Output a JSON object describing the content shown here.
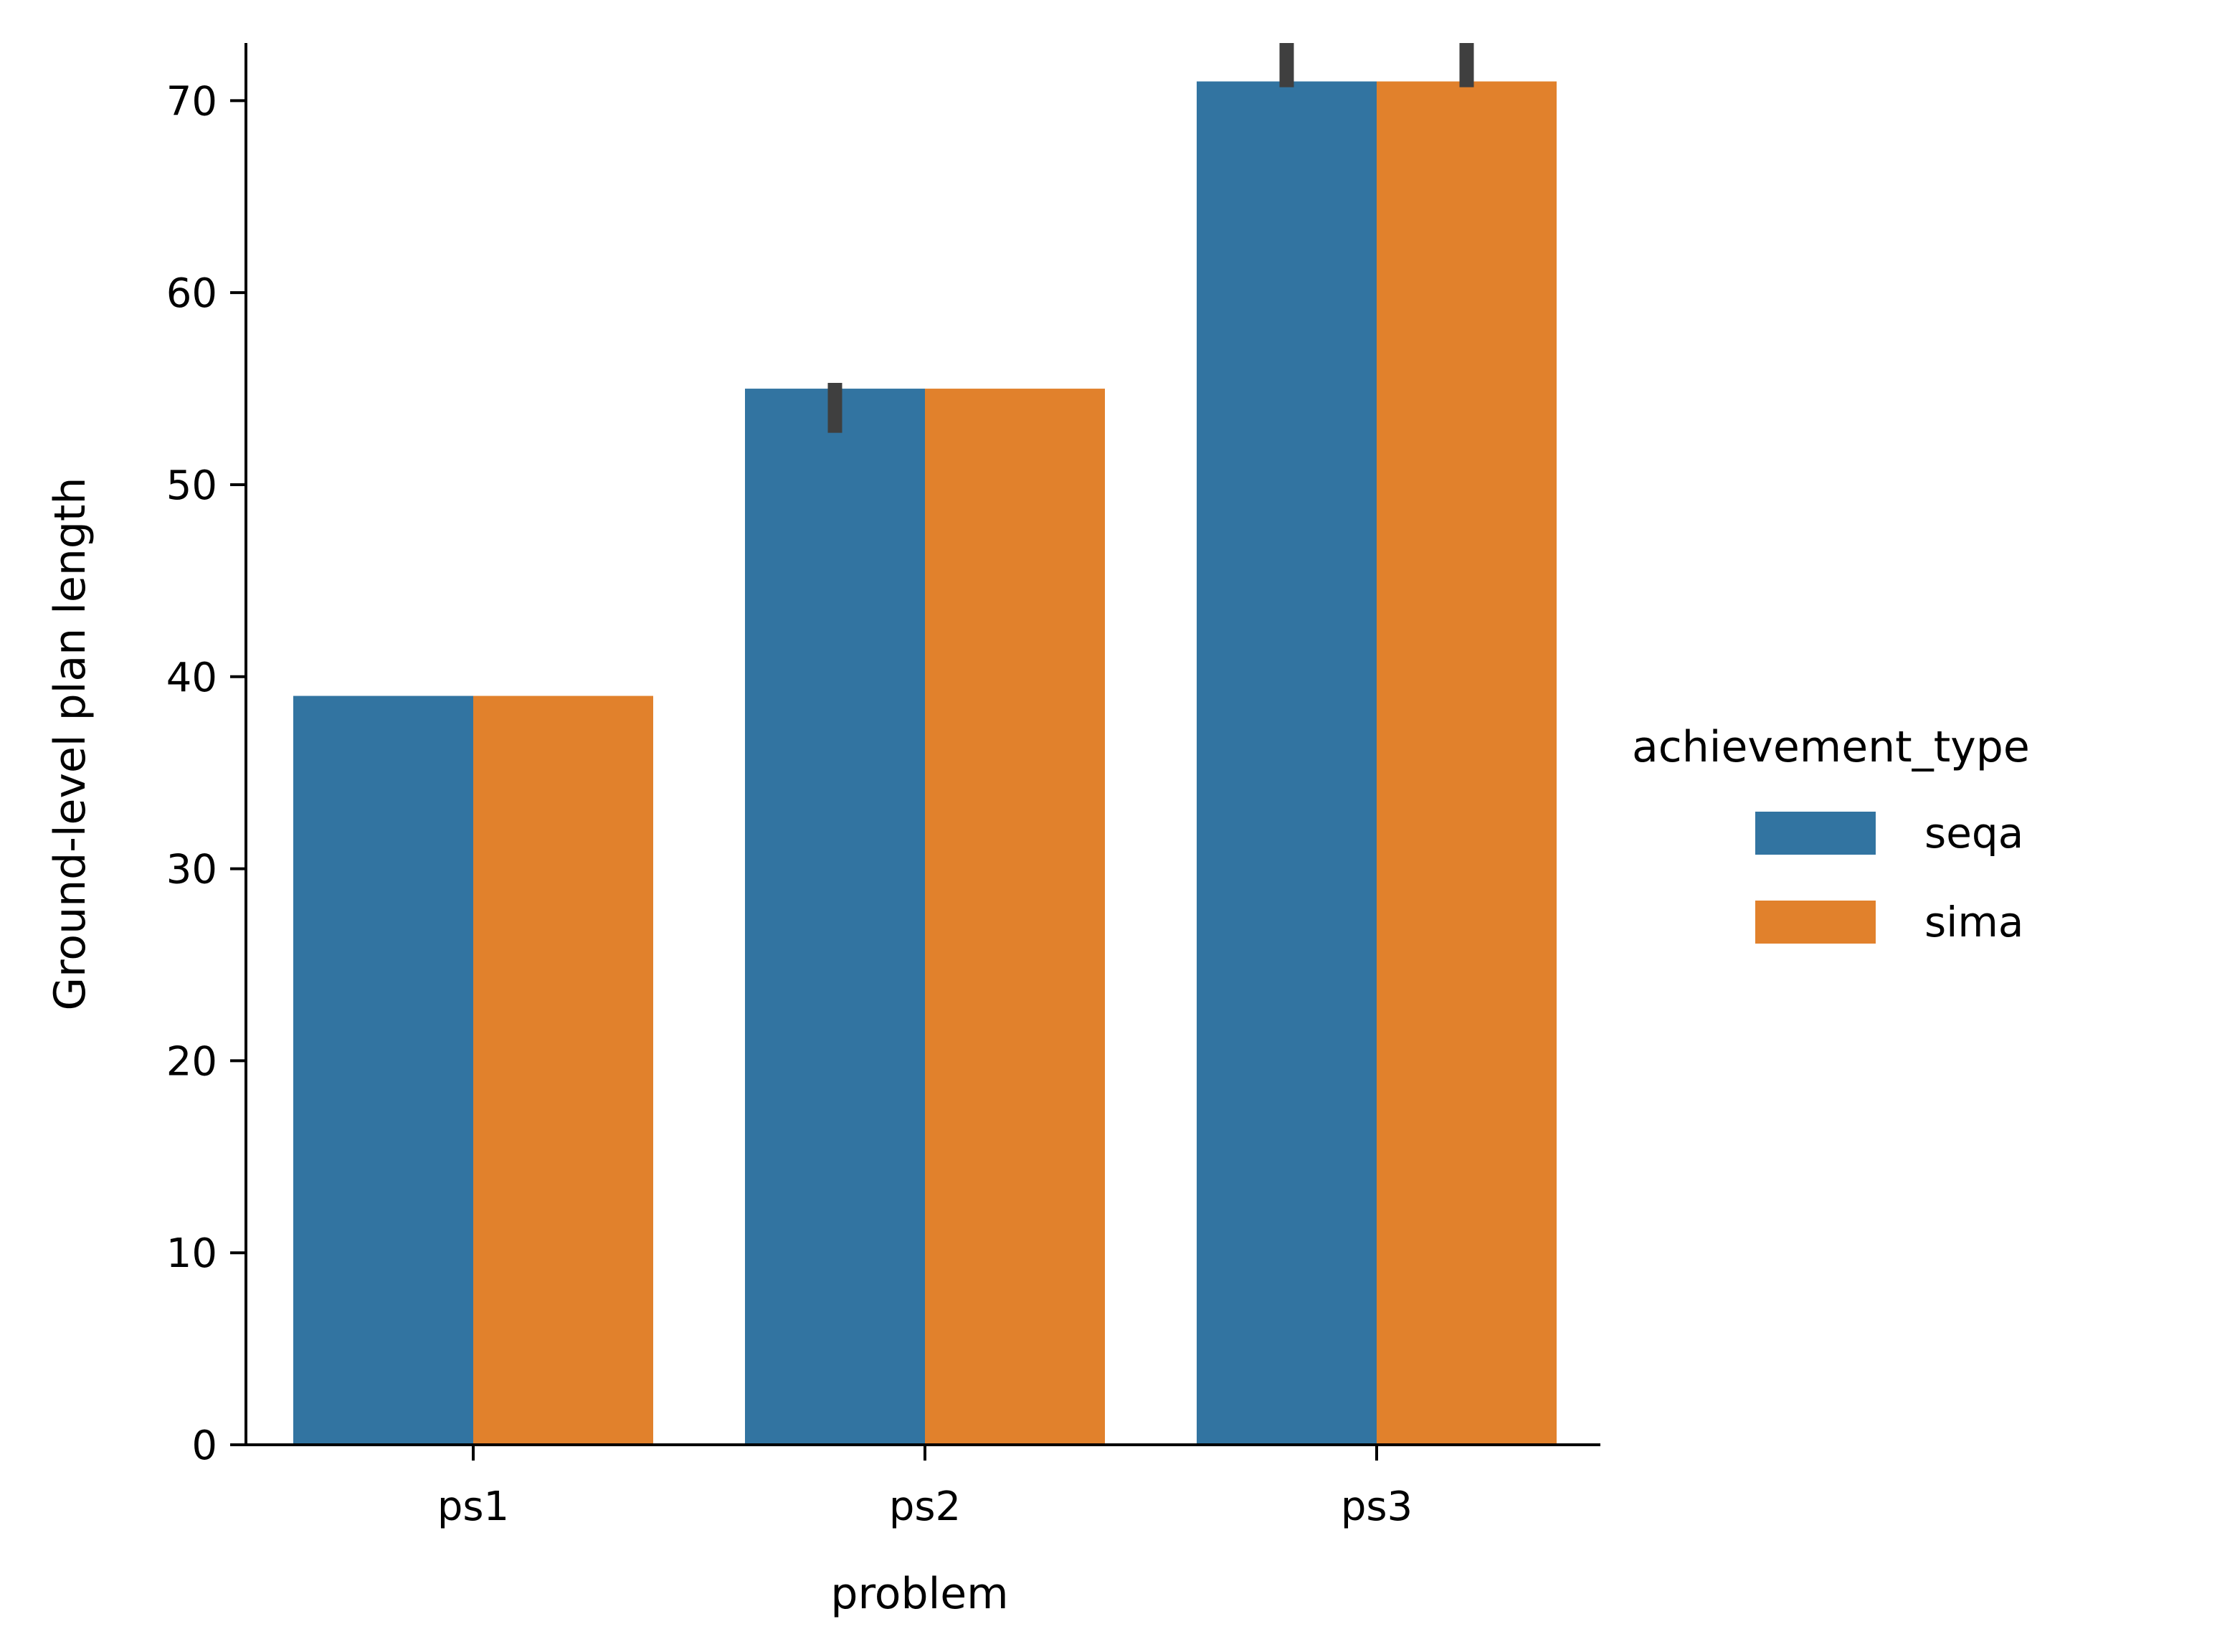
{
  "chart_data": {
    "type": "bar",
    "categories": [
      "ps1",
      "ps2",
      "ps3"
    ],
    "series": [
      {
        "name": "seqa",
        "values": [
          39,
          55,
          71
        ],
        "error_low": [
          39,
          52.7,
          70.7
        ],
        "error_high": [
          39,
          55.3,
          73.0
        ],
        "color": "#3274a1"
      },
      {
        "name": "sima",
        "values": [
          39,
          55,
          71
        ],
        "error_low": [
          39,
          55,
          70.7
        ],
        "error_high": [
          39,
          55,
          73.0
        ],
        "color": "#e1812c"
      }
    ],
    "xlabel": "problem",
    "ylabel": "Ground-level plan length",
    "ylim": [
      0,
      73
    ],
    "yticks": [
      0,
      10,
      20,
      30,
      40,
      50,
      60,
      70
    ],
    "legend": {
      "title": "achievement_type",
      "placement": "right"
    },
    "grid": false,
    "errorbar_color": "#3f3f3f"
  }
}
